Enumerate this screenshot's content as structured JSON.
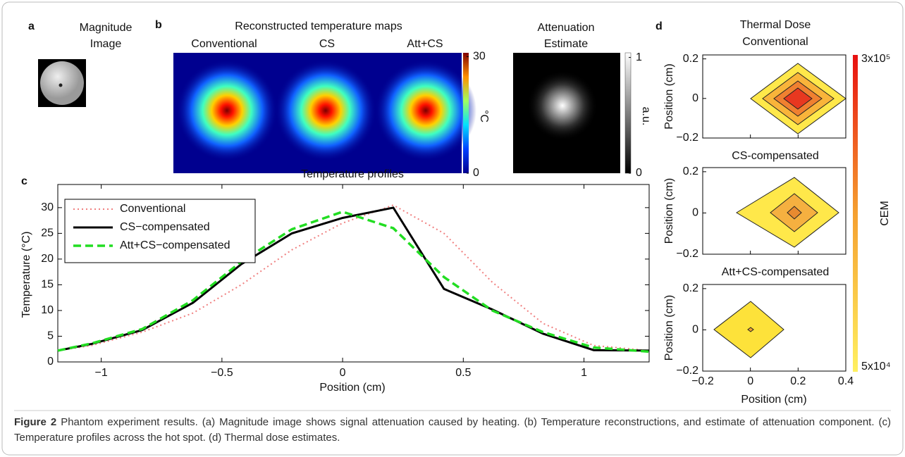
{
  "panel_labels": [
    "a",
    "b",
    "c",
    "d"
  ],
  "panel_a": {
    "title_lines": [
      "Magnitude",
      "Image"
    ]
  },
  "panel_b": {
    "title": "Reconstructed temperature maps",
    "map_titles": [
      "Conventional",
      "CS",
      "Att+CS"
    ],
    "colorbar_lim": [
      0,
      31
    ],
    "colorbar_ticks": [
      30,
      0
    ],
    "colorbar_label": "°C",
    "attenuation_title_lines": [
      "Attenuation",
      "Estimate"
    ],
    "attenuation_lim": [
      0,
      1.04
    ],
    "attenuation_ticks": [
      1,
      0
    ],
    "attenuation_label": "a.u."
  },
  "chart_data": {
    "type": "line",
    "title": "Temperature profiles",
    "x_label": "Position (cm)",
    "y_label": "Temperature (°C)",
    "x": [
      -1.18,
      -1.04,
      -0.83,
      -0.62,
      -0.42,
      -0.21,
      0,
      0.21,
      0.42,
      0.62,
      0.83,
      1.04,
      1.27
    ],
    "series": [
      {
        "name": "Conventional",
        "color": "#f08080",
        "style": "dotted",
        "values": [
          2.2,
          3.2,
          5.8,
          9.5,
          15,
          21.8,
          27,
          30.5,
          25,
          15.5,
          7.5,
          3.2,
          2.2
        ]
      },
      {
        "name": "CS−compensated",
        "color": "#000000",
        "style": "solid",
        "values": [
          2.2,
          3.5,
          6.2,
          11.5,
          19,
          25,
          28,
          30,
          14.2,
          10.2,
          5.5,
          2.3,
          2.2
        ]
      },
      {
        "name": "Att+CS−compensated",
        "color": "#22dd22",
        "style": "dashed",
        "values": [
          2.2,
          3.6,
          6.4,
          12,
          19.5,
          25.8,
          29.2,
          26,
          16.5,
          10,
          5.8,
          2.8,
          2.0
        ]
      }
    ],
    "xlim": [
      -1.18,
      1.27
    ],
    "ylim": [
      0,
      34.5
    ],
    "xticks": [
      {
        "value": -1,
        "label": "−1"
      },
      {
        "value": -0.5,
        "label": "−0.5"
      },
      0,
      0.5,
      1
    ],
    "yticks": [
      0,
      5,
      10,
      15,
      20,
      25,
      30
    ],
    "legend": "upper left"
  },
  "panel_d": {
    "title": "Thermal Dose",
    "plot_titles": [
      "Conventional",
      "CS-compensated",
      "Att+CS-compensated"
    ],
    "x_label": "Position (cm)",
    "y_label": "Position (cm)",
    "xlim": [
      -0.2,
      0.4
    ],
    "xticks": [
      {
        "value": -0.2,
        "label": "−0.2"
      },
      0,
      0.2,
      0.4
    ],
    "ylim": [
      -0.2,
      0.22
    ],
    "yticks": [
      0.2,
      0,
      {
        "value": -0.2,
        "label": "−0.2"
      }
    ],
    "colorbar_labels": [
      "3x10⁵",
      "5x10⁴"
    ],
    "colorbar_title": "CEM"
  },
  "caption": {
    "label": "Figure 2",
    "text": "Phantom experiment results. (a) Magnitude image shows signal attenuation caused by heating. (b) Temperature reconstructions, and estimate of attenuation component. (c) Temperature profiles across the hot spot. (d) Thermal dose estimates."
  }
}
